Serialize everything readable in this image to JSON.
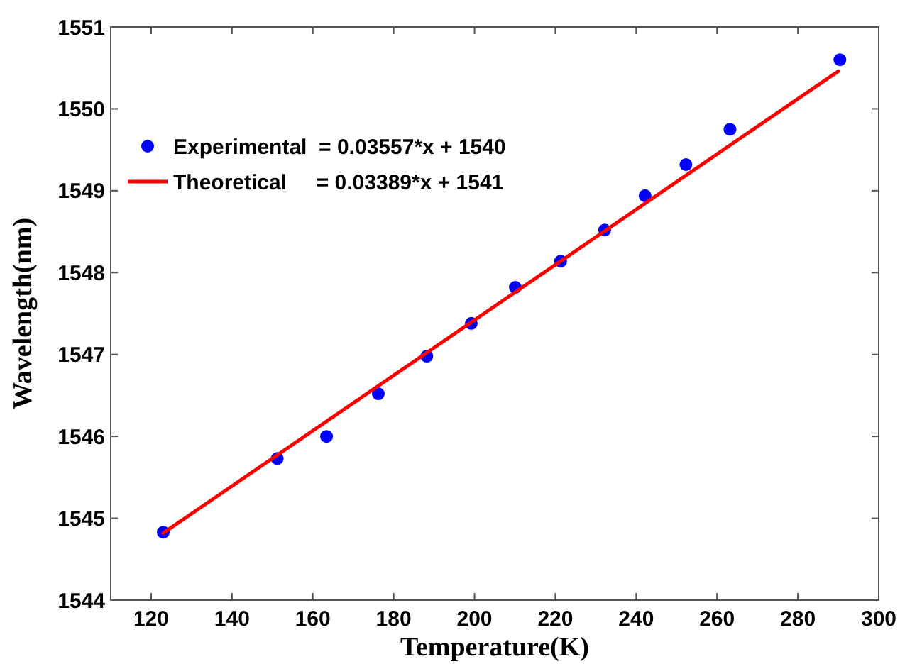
{
  "chart_data": {
    "type": "scatter",
    "xlabel": "Temperature(K)",
    "ylabel": "Wavelength(nm)",
    "xlim": [
      110,
      300
    ],
    "xticks": [
      120,
      140,
      160,
      180,
      200,
      220,
      240,
      260,
      280,
      300
    ],
    "ylim": [
      1544,
      1551
    ],
    "yticks": [
      1544,
      1545,
      1546,
      1547,
      1548,
      1549,
      1550,
      1551
    ],
    "legend": "top left",
    "grid": false,
    "series": [
      {
        "name": "Experimental  = 0.03557*x + 1540",
        "marker": "circle",
        "color": "#0000ff",
        "x": [
          123.0,
          151.2,
          163.4,
          176.2,
          188.2,
          199.2,
          210.1,
          221.3,
          232.2,
          242.2,
          252.3,
          263.2,
          290.4
        ],
        "values": [
          1544.83,
          1545.73,
          1546.0,
          1546.52,
          1546.98,
          1547.38,
          1547.82,
          1548.14,
          1548.52,
          1548.94,
          1549.32,
          1549.75,
          1550.6
        ]
      },
      {
        "name": "Theoretical     = 0.03389*x + 1541",
        "type": "line",
        "marker": "none",
        "line_style": "solid",
        "color": "#ff0000",
        "x": [
          123,
          290
        ],
        "values": [
          1544.82,
          1550.46
        ]
      }
    ]
  }
}
